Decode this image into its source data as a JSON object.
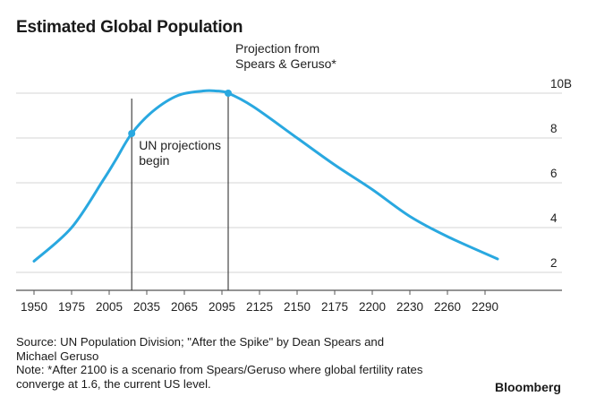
{
  "title": "Estimated Global Population",
  "footer": {
    "source_line1": "Source: UN Population Division; \"After the Spike\" by Dean Spears and",
    "source_line2": "Michael Geruso",
    "note_line1": "Note: *After 2100 is a scenario from Spears/Geruso where global fertility rates",
    "note_line2": "converge at 1.6, the current US level."
  },
  "brand": "Bloomberg",
  "chart_data": {
    "type": "line",
    "title": "Estimated Global Population",
    "xlabel": "",
    "ylabel": "",
    "x_tick_labels": [
      "1950",
      "1975",
      "2005",
      "2035",
      "2065",
      "2095",
      "2125",
      "2150",
      "2175",
      "2200",
      "2230",
      "2260",
      "2290"
    ],
    "y_tick_labels": [
      "2",
      "4",
      "6",
      "8",
      "10B"
    ],
    "y_ticks": [
      2,
      4,
      6,
      8,
      10
    ],
    "ylim": [
      1.2,
      10.8
    ],
    "grid": "horizontal",
    "series": [
      {
        "color": "#29a8e0",
        "x": [
          1950,
          1975,
          2000,
          2010,
          2023,
          2040,
          2060,
          2080,
          2090,
          2100,
          2120,
          2150,
          2175,
          2200,
          2230,
          2260,
          2300
        ],
        "values": [
          2.5,
          4.0,
          6.1,
          7.0,
          8.2,
          9.2,
          9.9,
          10.1,
          10.1,
          10.0,
          9.4,
          8.0,
          6.8,
          5.7,
          4.5,
          3.6,
          2.6
        ]
      }
    ],
    "markers": [
      {
        "x": 2023,
        "y": 8.2
      },
      {
        "x": 2100,
        "y": 10.0
      }
    ],
    "annotations": [
      {
        "x": 2023,
        "lines": [
          "UN projections",
          "begin"
        ]
      },
      {
        "x": 2100,
        "lines": [
          "Projection from",
          "Spears & Geruso*"
        ]
      }
    ]
  }
}
